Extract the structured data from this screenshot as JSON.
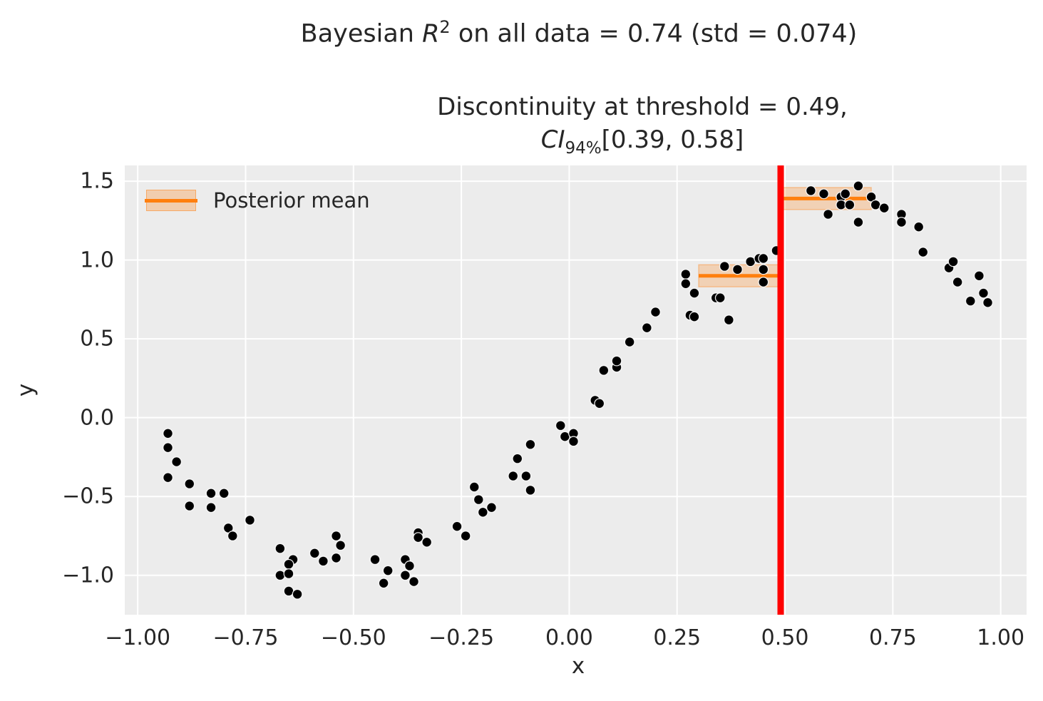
{
  "titles": {
    "main": {
      "prefix": "Bayesian ",
      "var": "R",
      "exp": "2",
      "suffix": " on all data = 0.74 (std = 0.074)"
    },
    "subtitle": {
      "line1": "Discontinuity at threshold = 0.49,",
      "ci_var": "CI",
      "ci_sub": "94%",
      "ci_range": "[0.39, 0.58]"
    }
  },
  "legend": {
    "label": "Posterior mean",
    "position": "upper left",
    "swatch": "orange line over shaded CI band"
  },
  "chart_data": {
    "type": "scatter",
    "title": "Bayesian R^2 on all data = 0.74 (std = 0.074)",
    "subtitle": "Discontinuity at threshold = 0.49, CI_94% [0.39, 0.58]",
    "xlabel": "x",
    "ylabel": "y",
    "xlim": [
      -1.03,
      1.06
    ],
    "ylim": [
      -1.25,
      1.6
    ],
    "grid": true,
    "xticks": [
      -1.0,
      -0.75,
      -0.5,
      -0.25,
      0.0,
      0.25,
      0.5,
      0.75,
      1.0
    ],
    "xtick_labels": [
      "−1.00",
      "−0.75",
      "−0.50",
      "−0.25",
      "0.00",
      "0.25",
      "0.50",
      "0.75",
      "1.00"
    ],
    "yticks": [
      1.5,
      1.0,
      0.5,
      0.0,
      -0.5,
      -1.0
    ],
    "ytick_labels": [
      "1.5",
      "1.0",
      "0.5",
      "0.0",
      "−0.5",
      "−1.0"
    ],
    "threshold": 0.49,
    "discontinuity": 0.49,
    "ci_94_discontinuity": [
      0.39,
      0.58
    ],
    "bayesian_r2": 0.74,
    "bayesian_r2_std": 0.074,
    "segments": [
      {
        "side": "left",
        "x_range": [
          0.3,
          0.49
        ],
        "posterior_mean": 0.9,
        "ci_94": [
          0.83,
          0.97
        ]
      },
      {
        "side": "right",
        "x_range": [
          0.49,
          0.7
        ],
        "posterior_mean": 1.39,
        "ci_94": [
          1.32,
          1.46
        ]
      }
    ],
    "points": [
      [
        -0.93,
        -0.1
      ],
      [
        -0.93,
        -0.19
      ],
      [
        -0.91,
        -0.28
      ],
      [
        -0.93,
        -0.38
      ],
      [
        -0.88,
        -0.42
      ],
      [
        -0.83,
        -0.48
      ],
      [
        -0.8,
        -0.48
      ],
      [
        -0.88,
        -0.56
      ],
      [
        -0.83,
        -0.57
      ],
      [
        -0.74,
        -0.65
      ],
      [
        -0.79,
        -0.7
      ],
      [
        -0.78,
        -0.75
      ],
      [
        -0.67,
        -0.83
      ],
      [
        -0.64,
        -0.9
      ],
      [
        -0.65,
        -0.93
      ],
      [
        -0.59,
        -0.86
      ],
      [
        -0.57,
        -0.91
      ],
      [
        -0.54,
        -0.89
      ],
      [
        -0.67,
        -1.0
      ],
      [
        -0.65,
        -0.99
      ],
      [
        -0.65,
        -1.1
      ],
      [
        -0.63,
        -1.12
      ],
      [
        -0.54,
        -0.75
      ],
      [
        -0.53,
        -0.81
      ],
      [
        -0.45,
        -0.9
      ],
      [
        -0.42,
        -0.97
      ],
      [
        -0.43,
        -1.05
      ],
      [
        -0.38,
        -0.9
      ],
      [
        -0.37,
        -0.94
      ],
      [
        -0.38,
        -1.0
      ],
      [
        -0.36,
        -1.04
      ],
      [
        -0.35,
        -0.73
      ],
      [
        -0.35,
        -0.76
      ],
      [
        -0.33,
        -0.79
      ],
      [
        -0.26,
        -0.69
      ],
      [
        -0.24,
        -0.75
      ],
      [
        -0.22,
        -0.44
      ],
      [
        -0.21,
        -0.52
      ],
      [
        -0.2,
        -0.6
      ],
      [
        -0.18,
        -0.57
      ],
      [
        -0.13,
        -0.37
      ],
      [
        -0.12,
        -0.26
      ],
      [
        -0.1,
        -0.37
      ],
      [
        -0.09,
        -0.46
      ],
      [
        -0.09,
        -0.17
      ],
      [
        -0.02,
        -0.05
      ],
      [
        -0.01,
        -0.12
      ],
      [
        0.01,
        -0.1
      ],
      [
        0.01,
        -0.15
      ],
      [
        0.06,
        0.11
      ],
      [
        0.07,
        0.09
      ],
      [
        0.08,
        0.3
      ],
      [
        0.11,
        0.32
      ],
      [
        0.11,
        0.36
      ],
      [
        0.14,
        0.48
      ],
      [
        0.18,
        0.57
      ],
      [
        0.2,
        0.67
      ],
      [
        0.27,
        0.91
      ],
      [
        0.27,
        0.85
      ],
      [
        0.29,
        0.79
      ],
      [
        0.28,
        0.65
      ],
      [
        0.29,
        0.64
      ],
      [
        0.34,
        0.76
      ],
      [
        0.35,
        0.76
      ],
      [
        0.36,
        0.96
      ],
      [
        0.39,
        0.94
      ],
      [
        0.37,
        0.62
      ],
      [
        0.42,
        0.99
      ],
      [
        0.44,
        1.01
      ],
      [
        0.45,
        1.01
      ],
      [
        0.45,
        0.94
      ],
      [
        0.45,
        0.86
      ],
      [
        0.48,
        1.06
      ],
      [
        0.56,
        1.44
      ],
      [
        0.59,
        1.42
      ],
      [
        0.6,
        1.29
      ],
      [
        0.63,
        1.4
      ],
      [
        0.63,
        1.35
      ],
      [
        0.64,
        1.42
      ],
      [
        0.65,
        1.35
      ],
      [
        0.67,
        1.47
      ],
      [
        0.67,
        1.24
      ],
      [
        0.7,
        1.4
      ],
      [
        0.71,
        1.35
      ],
      [
        0.73,
        1.33
      ],
      [
        0.77,
        1.29
      ],
      [
        0.77,
        1.24
      ],
      [
        0.81,
        1.21
      ],
      [
        0.82,
        1.05
      ],
      [
        0.88,
        0.95
      ],
      [
        0.89,
        0.99
      ],
      [
        0.9,
        0.86
      ],
      [
        0.93,
        0.74
      ],
      [
        0.95,
        0.9
      ],
      [
        0.96,
        0.79
      ],
      [
        0.97,
        0.73
      ]
    ],
    "colors": {
      "point": "#000000",
      "point_edge": "#ffffff",
      "posterior_mean": "#ff7f0e",
      "ci_band": "#ff7f0e",
      "threshold_line": "#ff0000",
      "plot_bg": "#ececec",
      "grid": "#ffffff",
      "text": "#262626"
    },
    "legend_entries": [
      "Posterior mean"
    ]
  }
}
